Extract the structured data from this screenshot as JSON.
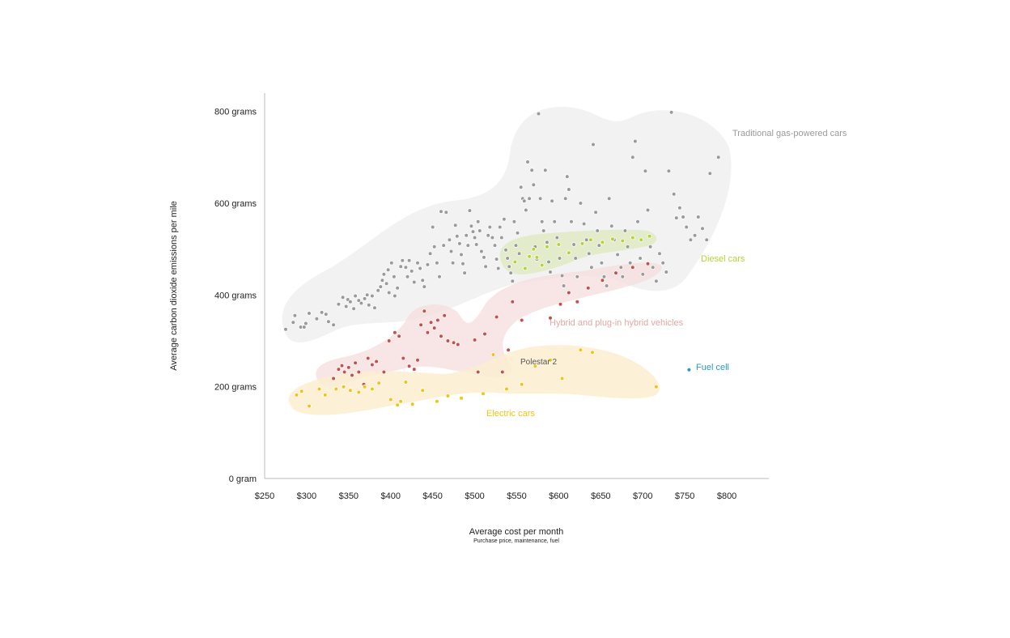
{
  "chart_data": {
    "type": "scatter",
    "xlabel": "Average cost per month",
    "xlabel_sub": "Purchase price, maintenance, fuel",
    "ylabel": "Average carbon dioxide emissions per mile",
    "xlim": [
      250,
      850
    ],
    "ylim": [
      0,
      840
    ],
    "x_ticks": [
      "$250",
      "$300",
      "$350",
      "$400",
      "$450",
      "$500",
      "$550",
      "$600",
      "$650",
      "$700",
      "$750",
      "$800"
    ],
    "y_ticks": [
      "0 gram",
      "200 grams",
      "400 grams",
      "600 grams",
      "800 grams"
    ],
    "grid": false,
    "series": [
      {
        "name": "Traditional gas-powered cars",
        "color": "#9a9a9a",
        "points": [
          [
            275,
            325
          ],
          [
            284,
            340
          ],
          [
            286,
            355
          ],
          [
            293,
            330
          ],
          [
            297,
            330
          ],
          [
            299,
            338
          ],
          [
            303,
            360
          ],
          [
            312,
            348
          ],
          [
            318,
            362
          ],
          [
            323,
            358
          ],
          [
            326,
            342
          ],
          [
            332,
            335
          ],
          [
            338,
            380
          ],
          [
            343,
            395
          ],
          [
            347,
            375
          ],
          [
            349,
            390
          ],
          [
            352,
            385
          ],
          [
            356,
            370
          ],
          [
            358,
            398
          ],
          [
            362,
            388
          ],
          [
            365,
            382
          ],
          [
            369,
            392
          ],
          [
            372,
            400
          ],
          [
            374,
            378
          ],
          [
            378,
            398
          ],
          [
            381,
            372
          ],
          [
            385,
            410
          ],
          [
            388,
            418
          ],
          [
            390,
            432
          ],
          [
            392,
            445
          ],
          [
            395,
            425
          ],
          [
            397,
            455
          ],
          [
            398,
            405
          ],
          [
            401,
            470
          ],
          [
            404,
            440
          ],
          [
            405,
            398
          ],
          [
            408,
            415
          ],
          [
            412,
            462
          ],
          [
            414,
            475
          ],
          [
            418,
            460
          ],
          [
            420,
            440
          ],
          [
            422,
            475
          ],
          [
            425,
            452
          ],
          [
            428,
            428
          ],
          [
            432,
            470
          ],
          [
            435,
            458
          ],
          [
            438,
            432
          ],
          [
            440,
            418
          ],
          [
            444,
            466
          ],
          [
            447,
            490
          ],
          [
            450,
            548
          ],
          [
            452,
            505
          ],
          [
            455,
            470
          ],
          [
            458,
            440
          ],
          [
            460,
            582
          ],
          [
            463,
            508
          ],
          [
            466,
            580
          ],
          [
            470,
            520
          ],
          [
            472,
            495
          ],
          [
            474,
            470
          ],
          [
            477,
            552
          ],
          [
            479,
            528
          ],
          [
            482,
            512
          ],
          [
            484,
            488
          ],
          [
            486,
            468
          ],
          [
            488,
            448
          ],
          [
            490,
            530
          ],
          [
            492,
            508
          ],
          [
            494,
            584
          ],
          [
            496,
            550
          ],
          [
            498,
            538
          ],
          [
            500,
            525
          ],
          [
            502,
            510
          ],
          [
            504,
            560
          ],
          [
            506,
            540
          ],
          [
            508,
            495
          ],
          [
            511,
            482
          ],
          [
            513,
            462
          ],
          [
            516,
            530
          ],
          [
            518,
            548
          ],
          [
            521,
            525
          ],
          [
            524,
            508
          ],
          [
            526,
            478
          ],
          [
            528,
            458
          ],
          [
            530,
            548
          ],
          [
            532,
            525
          ],
          [
            535,
            565
          ],
          [
            537,
            498
          ],
          [
            539,
            480
          ],
          [
            541,
            462
          ],
          [
            543,
            448
          ],
          [
            545,
            430
          ],
          [
            547,
            560
          ],
          [
            549,
            508
          ],
          [
            551,
            535
          ],
          [
            553,
            490
          ],
          [
            555,
            635
          ],
          [
            557,
            610
          ],
          [
            559,
            605
          ],
          [
            561,
            585
          ],
          [
            563,
            690
          ],
          [
            565,
            610
          ],
          [
            568,
            672
          ],
          [
            570,
            640
          ],
          [
            572,
            505
          ],
          [
            574,
            478
          ],
          [
            576,
            795
          ],
          [
            578,
            610
          ],
          [
            580,
            560
          ],
          [
            582,
            540
          ],
          [
            584,
            672
          ],
          [
            586,
            515
          ],
          [
            588,
            472
          ],
          [
            590,
            450
          ],
          [
            592,
            605
          ],
          [
            595,
            560
          ],
          [
            598,
            525
          ],
          [
            601,
            480
          ],
          [
            604,
            442
          ],
          [
            606,
            420
          ],
          [
            608,
            610
          ],
          [
            610,
            658
          ],
          [
            612,
            630
          ],
          [
            615,
            560
          ],
          [
            618,
            510
          ],
          [
            620,
            480
          ],
          [
            622,
            440
          ],
          [
            626,
            600
          ],
          [
            630,
            555
          ],
          [
            633,
            520
          ],
          [
            636,
            490
          ],
          [
            639,
            460
          ],
          [
            641,
            728
          ],
          [
            644,
            580
          ],
          [
            646,
            540
          ],
          [
            648,
            508
          ],
          [
            651,
            470
          ],
          [
            654,
            440
          ],
          [
            657,
            420
          ],
          [
            660,
            610
          ],
          [
            663,
            550
          ],
          [
            666,
            520
          ],
          [
            670,
            488
          ],
          [
            674,
            460
          ],
          [
            676,
            440
          ],
          [
            679,
            540
          ],
          [
            682,
            505
          ],
          [
            685,
            470
          ],
          [
            688,
            700
          ],
          [
            691,
            735
          ],
          [
            694,
            560
          ],
          [
            697,
            480
          ],
          [
            700,
            445
          ],
          [
            703,
            670
          ],
          [
            706,
            585
          ],
          [
            709,
            505
          ],
          [
            712,
            460
          ],
          [
            716,
            430
          ],
          [
            720,
            490
          ],
          [
            724,
            470
          ],
          [
            728,
            450
          ],
          [
            731,
            670
          ],
          [
            734,
            798
          ],
          [
            737,
            620
          ],
          [
            740,
            568
          ],
          [
            744,
            590
          ],
          [
            748,
            570
          ],
          [
            752,
            548
          ],
          [
            757,
            520
          ],
          [
            762,
            530
          ],
          [
            766,
            570
          ],
          [
            771,
            545
          ],
          [
            776,
            520
          ],
          [
            780,
            665
          ],
          [
            790,
            700
          ]
        ]
      },
      {
        "name": "Diesel cars",
        "color": "#b5d334",
        "points": [
          [
            548,
            472
          ],
          [
            560,
            458
          ],
          [
            565,
            484
          ],
          [
            570,
            500
          ],
          [
            574,
            482
          ],
          [
            580,
            465
          ],
          [
            586,
            505
          ],
          [
            600,
            510
          ],
          [
            612,
            492
          ],
          [
            628,
            512
          ],
          [
            638,
            520
          ],
          [
            652,
            515
          ],
          [
            664,
            522
          ],
          [
            676,
            518
          ],
          [
            688,
            525
          ],
          [
            698,
            520
          ],
          [
            708,
            528
          ]
        ]
      },
      {
        "name": "Hybrid and plug-in hybrid vehicles",
        "color": "#c2524f",
        "points": [
          [
            332,
            218
          ],
          [
            338,
            238
          ],
          [
            342,
            246
          ],
          [
            345,
            232
          ],
          [
            350,
            242
          ],
          [
            354,
            225
          ],
          [
            358,
            252
          ],
          [
            362,
            232
          ],
          [
            368,
            205
          ],
          [
            373,
            262
          ],
          [
            378,
            248
          ],
          [
            383,
            255
          ],
          [
            392,
            232
          ],
          [
            398,
            300
          ],
          [
            405,
            318
          ],
          [
            410,
            310
          ],
          [
            415,
            262
          ],
          [
            422,
            245
          ],
          [
            428,
            238
          ],
          [
            432,
            258
          ],
          [
            436,
            335
          ],
          [
            440,
            365
          ],
          [
            444,
            318
          ],
          [
            448,
            340
          ],
          [
            452,
            328
          ],
          [
            456,
            345
          ],
          [
            460,
            310
          ],
          [
            464,
            355
          ],
          [
            468,
            300
          ],
          [
            475,
            296
          ],
          [
            480,
            292
          ],
          [
            500,
            302
          ],
          [
            504,
            232
          ],
          [
            512,
            315
          ],
          [
            526,
            352
          ],
          [
            533,
            232
          ],
          [
            540,
            280
          ],
          [
            545,
            385
          ],
          [
            556,
            345
          ],
          [
            590,
            350
          ],
          [
            602,
            380
          ],
          [
            612,
            405
          ],
          [
            622,
            385
          ],
          [
            635,
            415
          ],
          [
            652,
            432
          ],
          [
            668,
            448
          ],
          [
            688,
            460
          ],
          [
            706,
            468
          ]
        ]
      },
      {
        "name": "Electric cars",
        "color": "#f0c419",
        "points": [
          [
            288,
            182
          ],
          [
            294,
            190
          ],
          [
            303,
            158
          ],
          [
            315,
            195
          ],
          [
            322,
            182
          ],
          [
            335,
            195
          ],
          [
            344,
            200
          ],
          [
            352,
            192
          ],
          [
            362,
            188
          ],
          [
            369,
            200
          ],
          [
            378,
            195
          ],
          [
            386,
            208
          ],
          [
            400,
            172
          ],
          [
            408,
            160
          ],
          [
            412,
            168
          ],
          [
            418,
            210
          ],
          [
            426,
            162
          ],
          [
            438,
            192
          ],
          [
            455,
            168
          ],
          [
            468,
            180
          ],
          [
            484,
            175
          ],
          [
            510,
            185
          ],
          [
            522,
            270
          ],
          [
            538,
            195
          ],
          [
            556,
            205
          ],
          [
            572,
            245
          ],
          [
            590,
            258
          ],
          [
            604,
            218
          ],
          [
            626,
            280
          ],
          [
            640,
            275
          ],
          [
            716,
            200
          ]
        ]
      },
      {
        "name": "Fuel cell",
        "color": "#2a98c8",
        "points": [
          [
            755,
            237
          ]
        ]
      }
    ],
    "annotations": [
      {
        "label": "Polestar 2",
        "x": 575,
        "y": 250
      }
    ]
  }
}
